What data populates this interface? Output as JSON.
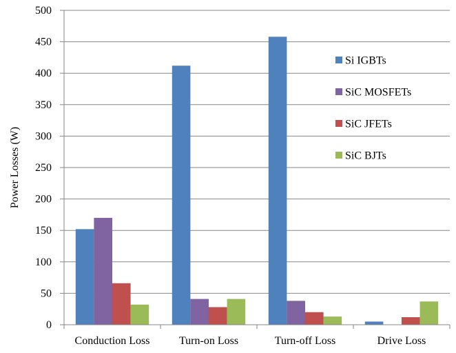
{
  "chart_data": {
    "type": "bar",
    "ylabel": "Power Losses (W)",
    "xlabel": "",
    "ylim": [
      0,
      500
    ],
    "yticks": [
      "0",
      "50",
      "100",
      "150",
      "200",
      "250",
      "300",
      "350",
      "400",
      "450",
      "500"
    ],
    "grid": "horizontal",
    "legend_position": "right",
    "categories": [
      "Conduction Loss",
      "Turn-on Loss",
      "Turn-off Loss",
      "Drive Loss"
    ],
    "series": [
      {
        "name": "Si IGBTs",
        "color": "#4F81BD",
        "values": [
          152,
          412,
          458,
          5
        ]
      },
      {
        "name": "SiC MOSFETs",
        "color": "#8064A2",
        "values": [
          170,
          41,
          38,
          0
        ]
      },
      {
        "name": "SiC JFETs",
        "color": "#C0504D",
        "values": [
          66,
          28,
          20,
          12
        ]
      },
      {
        "name": "SiC BJTs",
        "color": "#9BBB59",
        "values": [
          32,
          41,
          13,
          37
        ]
      }
    ]
  }
}
